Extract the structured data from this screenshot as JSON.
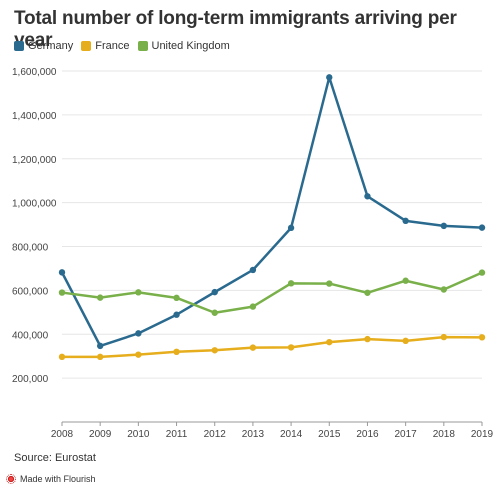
{
  "header": {
    "title": "Total number of long-term immigrants arriving per year"
  },
  "footer": {
    "source": "Source: Eurostat",
    "credit": "Made with Flourish"
  },
  "chart_data": {
    "type": "line",
    "title": "Total number of long-term immigrants arriving per year",
    "xlabel": "",
    "ylabel": "",
    "x": [
      "2008",
      "2009",
      "2010",
      "2011",
      "2012",
      "2013",
      "2014",
      "2015",
      "2016",
      "2017",
      "2018",
      "2019"
    ],
    "ylim": [
      0,
      1600000
    ],
    "yticks": [
      200000,
      400000,
      600000,
      800000,
      1000000,
      1200000,
      1400000,
      1600000
    ],
    "ytick_labels": [
      "200,000",
      "400,000",
      "600,000",
      "800,000",
      "1,000,000",
      "1,200,000",
      "1,400,000",
      "1,600,000"
    ],
    "grid": true,
    "legend_position": "top-left",
    "series": [
      {
        "name": "Germany",
        "color": "#2a6a8f",
        "values": [
          682000,
          347000,
          404000,
          489000,
          592000,
          693000,
          885000,
          1571000,
          1029000,
          917000,
          894000,
          886000
        ]
      },
      {
        "name": "France",
        "color": "#e6ad1c",
        "values": [
          297000,
          297000,
          307000,
          320000,
          327000,
          339000,
          340000,
          364000,
          378000,
          370000,
          387000,
          386000
        ]
      },
      {
        "name": "United Kingdom",
        "color": "#79b04a",
        "values": [
          590000,
          567000,
          591000,
          566000,
          498000,
          526000,
          632000,
          631000,
          589000,
          644000,
          604000,
          681000
        ]
      }
    ]
  }
}
